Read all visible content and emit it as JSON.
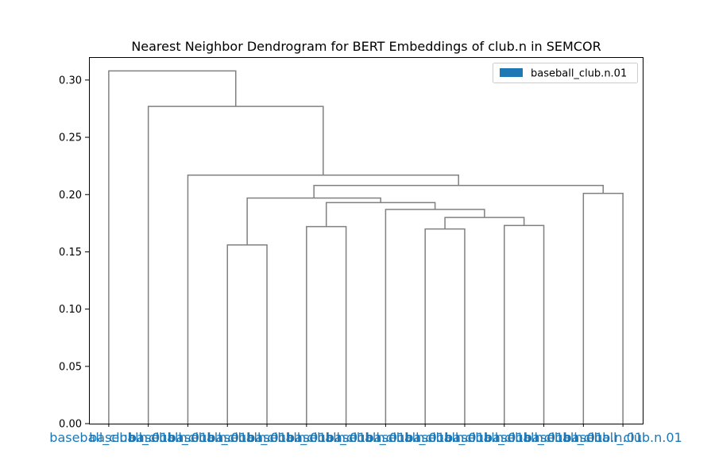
{
  "chart_data": {
    "type": "dendrogram",
    "title": "Nearest Neighbor Dendrogram for BERT Embeddings of club.n in SEMCOR",
    "xlabel": "",
    "ylabel": "",
    "ylim": [
      0,
      0.32
    ],
    "y_ticks": [
      "0.00",
      "0.05",
      "0.10",
      "0.15",
      "0.20",
      "0.25",
      "0.30"
    ],
    "y_tick_values": [
      0,
      0.05,
      0.1,
      0.15,
      0.2,
      0.25,
      0.3
    ],
    "grid": false,
    "legend_position": "top-right",
    "leaves": [
      "baseball_club.n.01",
      "baseball_club.n.01",
      "baseball_club.n.01",
      "baseball_club.n.01",
      "baseball_club.n.01",
      "baseball_club.n.01",
      "baseball_club.n.01",
      "baseball_club.n.01",
      "baseball_club.n.01",
      "baseball_club.n.01",
      "baseball_club.n.01",
      "baseball_club.n.01",
      "baseball_club.n.01",
      "baseball_club.n.01"
    ],
    "merges": [
      {
        "left": 3,
        "right": 4,
        "height": 0.156
      },
      {
        "left": 5,
        "right": 6,
        "height": 0.172
      },
      {
        "left": 8,
        "right": 9,
        "height": 0.17
      },
      {
        "left": 10,
        "right": 11,
        "height": 0.173
      },
      {
        "left": 16,
        "right": 17,
        "height": 0.18
      },
      {
        "left": 7,
        "right": 18,
        "height": 0.187
      },
      {
        "left": 15,
        "right": 19,
        "height": 0.193
      },
      {
        "left": 14,
        "right": 20,
        "height": 0.197
      },
      {
        "left": 12,
        "right": 13,
        "height": 0.201
      },
      {
        "left": 21,
        "right": 22,
        "height": 0.208
      },
      {
        "left": 2,
        "right": 23,
        "height": 0.217
      },
      {
        "left": 1,
        "right": 24,
        "height": 0.277
      },
      {
        "left": 0,
        "right": 25,
        "height": 0.308
      }
    ],
    "series": [
      {
        "name": "baseball_club.n.01",
        "color": "#1f77b4"
      }
    ],
    "link_color": "#808080",
    "label_color": "#1f77b4"
  }
}
